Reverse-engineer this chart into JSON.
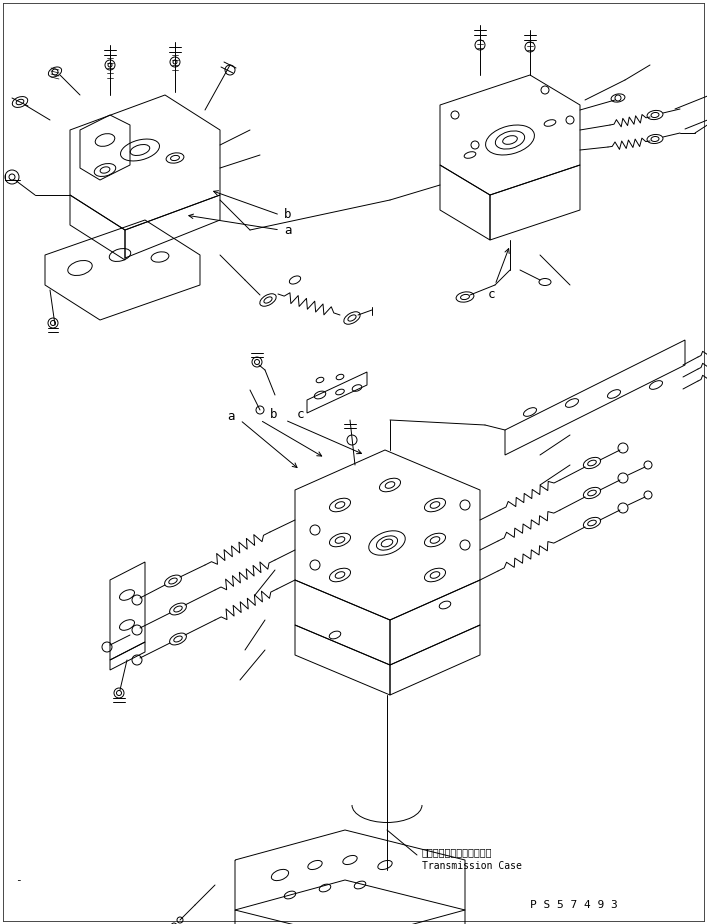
{
  "background_color": "#ffffff",
  "line_color": "#000000",
  "fig_width": 7.07,
  "fig_height": 9.24,
  "dpi": 100,
  "transmission_case_jp": "トランスミッションケース",
  "transmission_case_en": "Transmission Case",
  "part_number": "P S 5 7 4 9 3",
  "label_a1": "a",
  "label_b1": "b",
  "label_c1": "c",
  "label_a2": "a",
  "label_b2": "b",
  "label_c2": "c"
}
